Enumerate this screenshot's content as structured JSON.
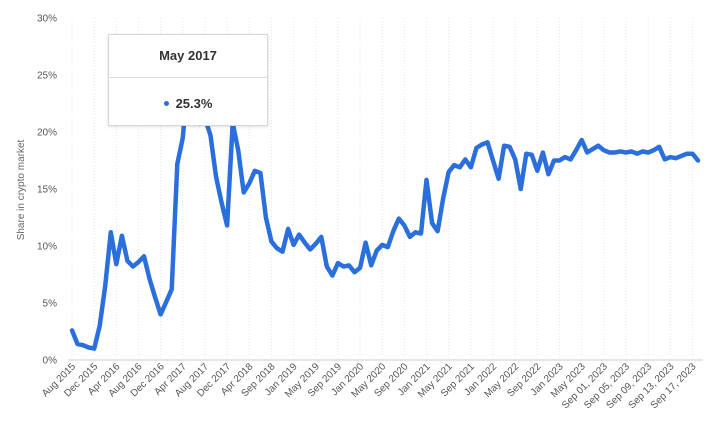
{
  "chart_data": {
    "type": "line",
    "ylabel": "Share in crypto market",
    "ylim": [
      0,
      30
    ],
    "y_ticks": [
      "0%",
      "5%",
      "10%",
      "15%",
      "20%",
      "25%",
      "30%"
    ],
    "y_tick_values": [
      0,
      5,
      10,
      15,
      20,
      25,
      30
    ],
    "x_tick_labels": [
      "Aug 2015",
      "Dec 2015",
      "Apr 2016",
      "Aug 2016",
      "Dec 2016",
      "Apr 2017",
      "Aug 2017",
      "Dec 2017",
      "Apr 2018",
      "Sep 2018",
      "Jan 2019",
      "May 2019",
      "Sep 2019",
      "Jan 2020",
      "May 2020",
      "Sep 2020",
      "Jan 2021",
      "May 2021",
      "Sep 2021",
      "Jan 2022",
      "May 2022",
      "Sep 2022",
      "Jan 2023",
      "May 2023",
      "Sep 01, 2023",
      "Sep 05, 2023",
      "Sep 09, 2023",
      "Sep 13, 2023",
      "Sep 17, 2023"
    ],
    "x_tick_index": [
      0,
      4,
      8,
      12,
      16,
      20,
      24,
      28,
      32,
      36,
      40,
      44,
      48,
      52,
      56,
      60,
      64,
      68,
      72,
      76,
      80,
      84,
      88,
      92,
      96,
      100,
      104,
      108,
      112
    ],
    "grid": "vertical",
    "color": "#2a6fdb",
    "series": [
      {
        "values": [
          2.6,
          1.4,
          1.3,
          1.1,
          1.0,
          3.0,
          6.5,
          11.2,
          8.4,
          10.9,
          8.7,
          8.2,
          8.6,
          9.1,
          7.1,
          5.5,
          4.0,
          5.1,
          6.2,
          17.2,
          19.5,
          25.3,
          22.8,
          20.7,
          21.2,
          19.7,
          16.1,
          13.8,
          11.8,
          20.8,
          18.4,
          14.7,
          15.5,
          16.6,
          16.4,
          12.5,
          10.4,
          9.8,
          9.5,
          11.5,
          10.1,
          11.0,
          10.3,
          9.7,
          10.2,
          10.8,
          8.2,
          7.4,
          8.5,
          8.2,
          8.3,
          7.7,
          8.1,
          10.3,
          8.3,
          9.6,
          10.1,
          9.9,
          11.3,
          12.4,
          11.8,
          10.8,
          11.2,
          11.1,
          15.8,
          12.0,
          11.3,
          14.2,
          16.5,
          17.1,
          16.9,
          17.6,
          16.9,
          18.6,
          18.9,
          19.1,
          17.5,
          15.9,
          18.8,
          18.7,
          17.6,
          15.0,
          18.1,
          18.0,
          16.6,
          18.2,
          16.3,
          17.5,
          17.5,
          17.8,
          17.6,
          18.4,
          19.3,
          18.2,
          18.5,
          18.8,
          18.4,
          18.2,
          18.2,
          18.3,
          18.2,
          18.3,
          18.1,
          18.3,
          18.2,
          18.4,
          18.7,
          17.6,
          17.8,
          17.7,
          17.9,
          18.1,
          18.1,
          17.5
        ]
      }
    ],
    "tooltip": {
      "title": "May 2017",
      "value": "25.3%",
      "index": 21
    }
  }
}
